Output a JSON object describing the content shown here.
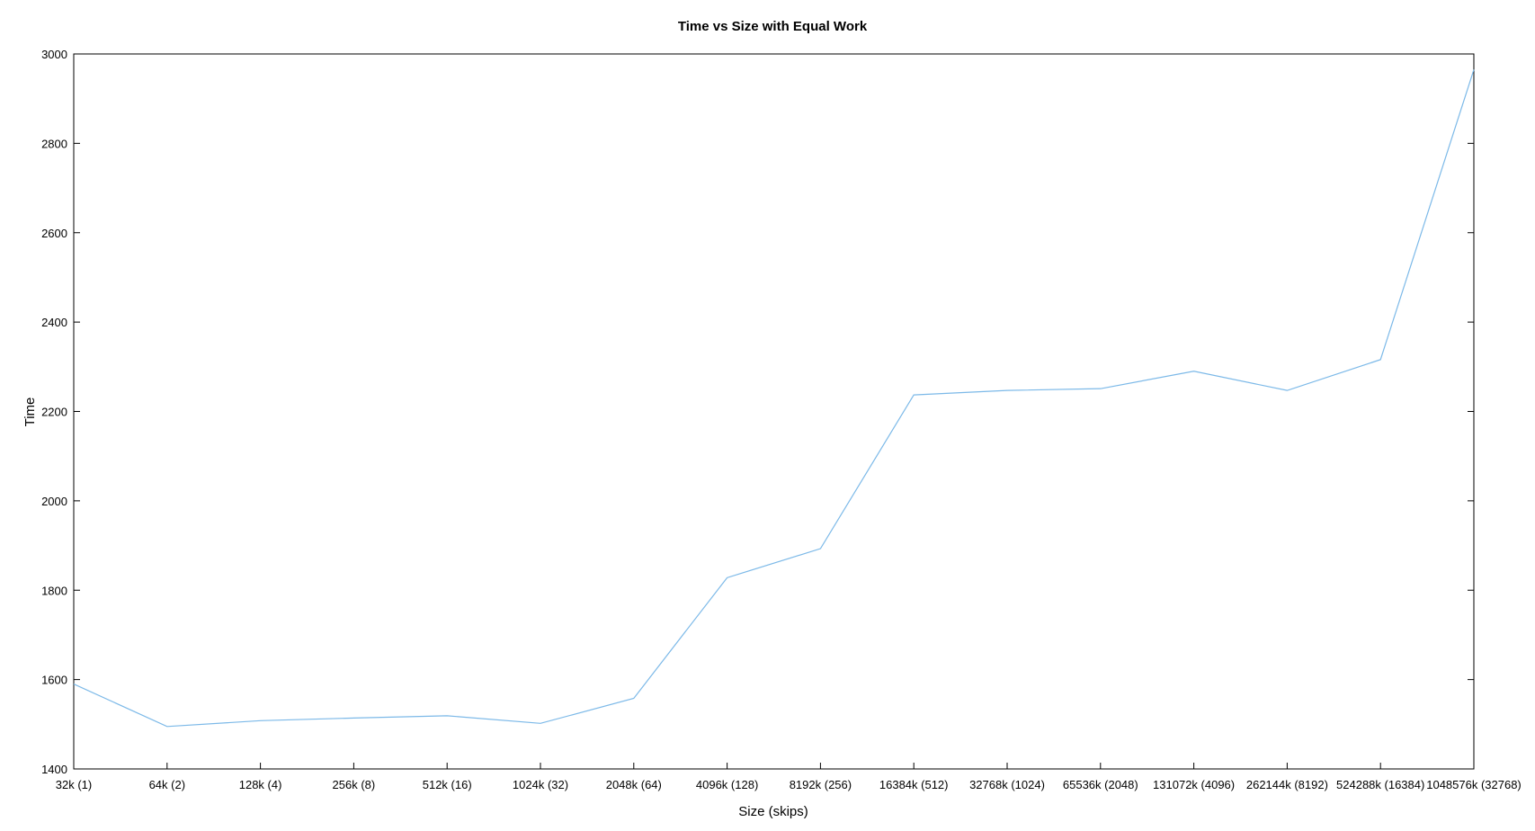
{
  "colors": {
    "series": "#7cb9e8",
    "axis": "#000000",
    "background": "#ffffff"
  },
  "chart_data": {
    "type": "line",
    "title": "Time vs Size with Equal Work",
    "xlabel": "Size (skips)",
    "ylabel": "Time",
    "ylim": [
      1400,
      3000
    ],
    "yticks": [
      1400,
      1600,
      1800,
      2000,
      2200,
      2400,
      2600,
      2800,
      3000
    ],
    "grid": false,
    "legend": "none",
    "categories": [
      "32k (1)",
      "64k (2)",
      "128k (4)",
      "256k (8)",
      "512k (16)",
      "1024k (32)",
      "2048k (64)",
      "4096k (128)",
      "8192k (256)",
      "16384k (512)",
      "32768k (1024)",
      "65536k (2048)",
      "131072k (4096)",
      "262144k (8192)",
      "524288k (16384)",
      "1048576k (32768)"
    ],
    "series": [
      {
        "values": [
          1590,
          1495,
          1508,
          1514,
          1519,
          1502,
          1558,
          1828,
          1893,
          2237,
          2247,
          2251,
          2290,
          2247,
          2316,
          2965
        ]
      }
    ]
  }
}
